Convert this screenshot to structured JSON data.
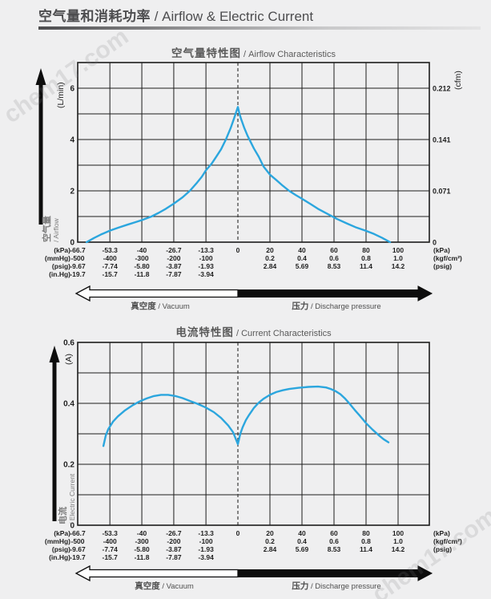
{
  "page": {
    "heading_zh": "空气量和消耗功率",
    "heading_en": " / Airflow & Electric Current",
    "watermark": "chem17.com"
  },
  "x_axis": {
    "left_ticks_kpa": [
      -66.7,
      -53.3,
      -40,
      -26.7,
      -13.3,
      0
    ],
    "right_ticks_kpa": [
      20,
      40,
      60,
      80,
      100
    ],
    "interior_ticks_kpa": [
      -53.3,
      -40,
      -26.7,
      -13.3,
      20,
      40,
      60,
      80,
      100
    ],
    "vacuum_min_kpa": -66.7,
    "pressure_max_kpa": 100,
    "rows": [
      {
        "unit": "(kPa)",
        "left": [
          "-66.7",
          "-53.3",
          "-40",
          "-26.7",
          "-13.3",
          "0"
        ],
        "right": [
          "20",
          "40",
          "60",
          "80",
          "100"
        ],
        "right_unit": "(kPa)"
      },
      {
        "unit": "(mmHg)",
        "left": [
          "-500",
          "-400",
          "-300",
          "-200",
          "-100"
        ],
        "right": [
          "0.2",
          "0.4",
          "0.6",
          "0.8",
          "1.0"
        ],
        "right_unit": "(kgf/cm²)"
      },
      {
        "unit": "(psig)",
        "left": [
          "-9.67",
          "-7.74",
          "-5.80",
          "-3.87",
          "-1.93"
        ],
        "right": [
          "2.84",
          "5.69",
          "8.53",
          "11.4",
          "14.2"
        ],
        "right_unit": "(psig)"
      },
      {
        "unit": "(in.Hg)",
        "left": [
          "-19.7",
          "-15.7",
          "-11.8",
          "-7.87",
          "-3.94"
        ],
        "right": [],
        "right_unit": ""
      }
    ],
    "arrow": {
      "vacuum_zh": "真空度",
      "vacuum_en": " / Vacuum",
      "pressure_zh": "压力",
      "pressure_en": " / Discharge pressure"
    }
  },
  "chart_data": [
    {
      "type": "line",
      "title_zh": "空气量特性图",
      "title_en": " / Airflow Characteristics",
      "y_axis_zh": "空气量",
      "y_axis_en": "/ Airflow",
      "y_left": {
        "unit": "(L/min)",
        "max": 7,
        "grid_step": 1,
        "ticks": [
          {
            "v": 0,
            "label": "0"
          },
          {
            "v": 2,
            "label": "2"
          },
          {
            "v": 4,
            "label": "4"
          },
          {
            "v": 6,
            "label": "6"
          }
        ]
      },
      "y_right": {
        "unit": "(cfm)",
        "bottom_unit": "(kPa)",
        "ticks": [
          {
            "v": 6,
            "label": "0.212"
          },
          {
            "v": 4,
            "label": "0.141"
          },
          {
            "v": 2,
            "label": "0.071"
          },
          {
            "v": 0,
            "label": "0"
          }
        ]
      },
      "series": [
        {
          "name": "airflow",
          "color": "#2ba6de",
          "segments": [
            [
              [
                -63,
                0
              ],
              [
                -60,
                0.16
              ],
              [
                -57,
                0.3
              ],
              [
                -53.3,
                0.45
              ],
              [
                -50,
                0.56
              ],
              [
                -46,
                0.68
              ],
              [
                -43,
                0.77
              ],
              [
                -40,
                0.86
              ],
              [
                -36,
                1.0
              ],
              [
                -33,
                1.14
              ],
              [
                -30,
                1.3
              ],
              [
                -26.7,
                1.5
              ],
              [
                -23,
                1.75
              ],
              [
                -20,
                2.0
              ],
              [
                -17,
                2.32
              ],
              [
                -15,
                2.55
              ],
              [
                -13.3,
                2.8
              ],
              [
                -11,
                3.05
              ],
              [
                -9,
                3.33
              ],
              [
                -7,
                3.62
              ],
              [
                -5,
                4.0
              ],
              [
                -3,
                4.45
              ],
              [
                -1.5,
                4.85
              ],
              [
                0,
                5.27
              ]
            ],
            [
              [
                0,
                5.27
              ],
              [
                1,
                5.0
              ],
              [
                2,
                4.8
              ],
              [
                4,
                4.45
              ],
              [
                6,
                4.15
              ],
              [
                8,
                3.9
              ],
              [
                10,
                3.65
              ],
              [
                13,
                3.33
              ],
              [
                16,
                2.95
              ],
              [
                20,
                2.63
              ],
              [
                24,
                2.42
              ],
              [
                28,
                2.2
              ],
              [
                32,
                2.0
              ],
              [
                36,
                1.84
              ],
              [
                40,
                1.69
              ],
              [
                45,
                1.5
              ],
              [
                50,
                1.3
              ],
              [
                56,
                1.1
              ],
              [
                62,
                0.9
              ],
              [
                68,
                0.73
              ],
              [
                74,
                0.57
              ],
              [
                80,
                0.44
              ],
              [
                85,
                0.32
              ],
              [
                90,
                0.17
              ],
              [
                95,
                0
              ]
            ]
          ]
        }
      ]
    },
    {
      "type": "line",
      "title_zh": "电流特性图",
      "title_en": " / Current Characteristics",
      "y_axis_zh": "电流",
      "y_axis_en": "/ Electric Current",
      "y_left": {
        "unit": "(A)",
        "max": 0.6,
        "grid_step": 0.1,
        "ticks": [
          {
            "v": 0,
            "label": "0"
          },
          {
            "v": 0.2,
            "label": "0.2"
          },
          {
            "v": 0.4,
            "label": "0.4"
          },
          {
            "v": 0.6,
            "label": "0.6"
          }
        ]
      },
      "y_right": null,
      "series": [
        {
          "name": "electric-current",
          "color": "#2ba6de",
          "segments": [
            [
              [
                -56,
                0.26
              ],
              [
                -55,
                0.295
              ],
              [
                -54,
                0.315
              ],
              [
                -52,
                0.34
              ],
              [
                -50,
                0.357
              ],
              [
                -47,
                0.377
              ],
              [
                -44,
                0.393
              ],
              [
                -41,
                0.406
              ],
              [
                -38,
                0.416
              ],
              [
                -35,
                0.424
              ],
              [
                -32,
                0.428
              ],
              [
                -29,
                0.428
              ],
              [
                -26,
                0.424
              ],
              [
                -23,
                0.417
              ],
              [
                -20,
                0.408
              ],
              [
                -17,
                0.399
              ],
              [
                -13.3,
                0.386
              ],
              [
                -10,
                0.371
              ],
              [
                -7,
                0.352
              ],
              [
                -4,
                0.327
              ],
              [
                -2,
                0.305
              ],
              [
                0,
                0.266
              ]
            ],
            [
              [
                0,
                0.266
              ],
              [
                1.5,
                0.3
              ],
              [
                3,
                0.322
              ],
              [
                5,
                0.345
              ],
              [
                7,
                0.362
              ],
              [
                10,
                0.385
              ],
              [
                13,
                0.402
              ],
              [
                16,
                0.415
              ],
              [
                20,
                0.428
              ],
              [
                24,
                0.437
              ],
              [
                28,
                0.443
              ],
              [
                32,
                0.447
              ],
              [
                38,
                0.451
              ],
              [
                44,
                0.454
              ],
              [
                50,
                0.455
              ],
              [
                55,
                0.452
              ],
              [
                58,
                0.447
              ],
              [
                61,
                0.44
              ],
              [
                64,
                0.43
              ],
              [
                67,
                0.415
              ],
              [
                70,
                0.397
              ],
              [
                73,
                0.378
              ],
              [
                76,
                0.36
              ],
              [
                80,
                0.335
              ],
              [
                84,
                0.314
              ],
              [
                88,
                0.295
              ],
              [
                91,
                0.282
              ],
              [
                94,
                0.272
              ]
            ]
          ]
        }
      ]
    }
  ]
}
